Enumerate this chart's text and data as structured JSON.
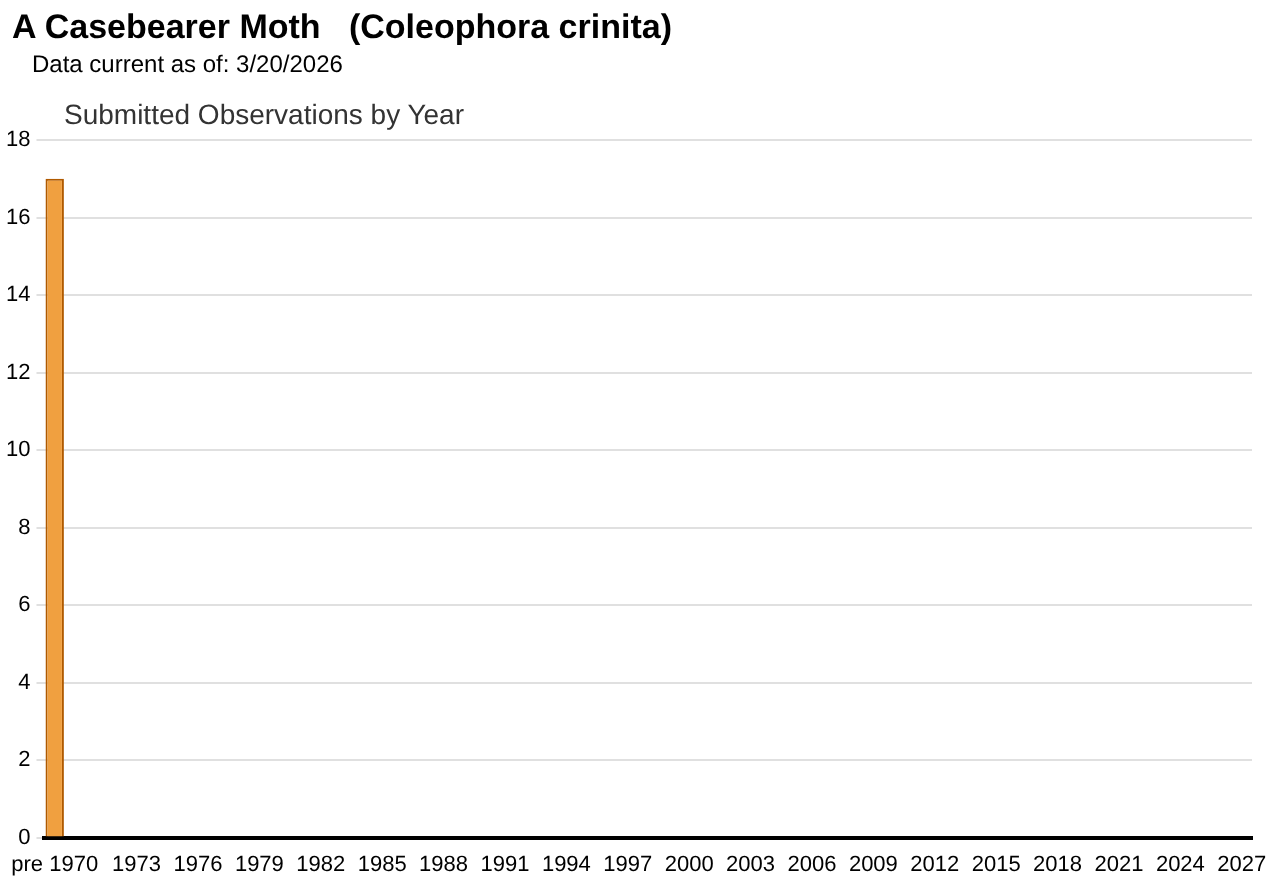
{
  "chart_data": {
    "type": "bar",
    "title": "A Casebearer Moth   (Coleophora crinita)",
    "subtitle": "Data current as of: 3/20/2026",
    "annotations": [
      "Submitted Observations by Year"
    ],
    "categories": [
      "pre 1970",
      null,
      null,
      null,
      "1973",
      null,
      null,
      "1976",
      null,
      null,
      "1979",
      null,
      null,
      "1982",
      null,
      null,
      "1985",
      null,
      null,
      "1988",
      null,
      null,
      "1991",
      null,
      null,
      "1994",
      null,
      null,
      "1997",
      null,
      null,
      "2000",
      null,
      null,
      "2003",
      null,
      null,
      "2006",
      null,
      null,
      "2009",
      null,
      null,
      "2012",
      null,
      null,
      "2015",
      null,
      null,
      "2018",
      null,
      null,
      "2021",
      null,
      null,
      "2024",
      null,
      null,
      "2027"
    ],
    "values": [
      17,
      null,
      null,
      null,
      null,
      null,
      null,
      null,
      null,
      null,
      null,
      null,
      null,
      null,
      null,
      null,
      null,
      null,
      null,
      null,
      null,
      null,
      null,
      null,
      null,
      null,
      null,
      null,
      null,
      null,
      null,
      null,
      null,
      null,
      null,
      null,
      null,
      null,
      null,
      null,
      null,
      null,
      null,
      null,
      null,
      null,
      null,
      null,
      null,
      null,
      null,
      null,
      null,
      null,
      null,
      null,
      null,
      null,
      null
    ],
    "color": "#f0a040",
    "ylim": [
      0,
      18
    ],
    "yticks": [
      0,
      2,
      4,
      6,
      8,
      10,
      12,
      14,
      16,
      18
    ],
    "grid": "y",
    "legend": false
  }
}
